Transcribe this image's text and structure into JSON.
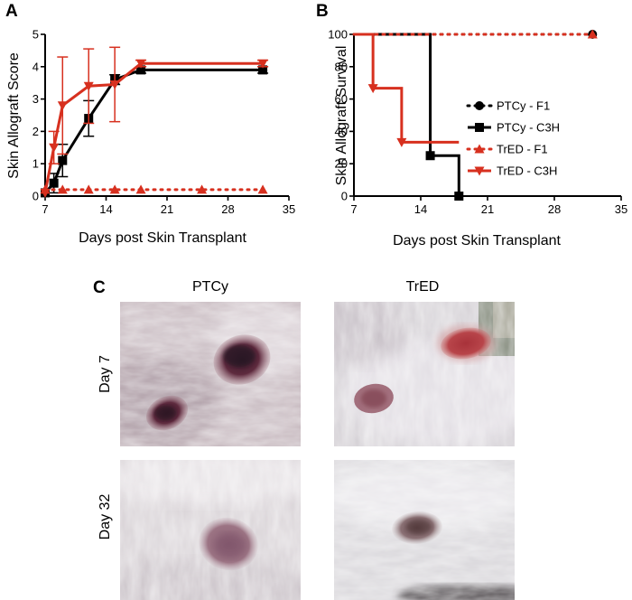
{
  "figure": {
    "panel_labels": [
      "A",
      "B",
      "C"
    ]
  },
  "chart_data": [
    {
      "panel": "A",
      "type": "line",
      "title": "",
      "xlabel": "Days post Skin Transplant",
      "ylabel": "Skin Allograft Score",
      "xlim": [
        7,
        35
      ],
      "ylim": [
        0,
        5
      ],
      "xticks": [
        7,
        14,
        21,
        28,
        35
      ],
      "yticks": [
        0,
        1,
        2,
        3,
        4,
        5
      ],
      "grid": false,
      "series": [
        {
          "name": "PTCy - C3H",
          "color": "#000000",
          "marker": "square",
          "dashed": false,
          "x": [
            7,
            8,
            9,
            12,
            15,
            18,
            32
          ],
          "y": [
            0.1,
            0.4,
            1.1,
            2.4,
            3.6,
            3.9,
            3.9
          ],
          "err": [
            0,
            0.3,
            0.5,
            0.55,
            0.15,
            0.1,
            0.1
          ]
        },
        {
          "name": "TrED - C3H",
          "color": "#d7301f",
          "marker": "triangle-down",
          "dashed": false,
          "x": [
            7,
            8,
            9,
            12,
            15,
            18,
            32
          ],
          "y": [
            0.1,
            1.5,
            2.8,
            3.4,
            3.45,
            4.1,
            4.1
          ],
          "err": [
            0,
            0.5,
            1.5,
            1.15,
            1.15,
            0.1,
            0.1
          ]
        },
        {
          "name": "TrED - F1",
          "color": "#d7301f",
          "marker": "triangle-up",
          "dashed": true,
          "x": [
            7,
            9,
            12,
            15,
            18,
            25,
            32
          ],
          "y": [
            0.2,
            0.2,
            0.2,
            0.2,
            0.2,
            0.2,
            0.2
          ],
          "err": [
            0,
            0,
            0,
            0,
            0,
            0,
            0
          ]
        }
      ]
    },
    {
      "panel": "B",
      "type": "line",
      "title": "",
      "xlabel": "Days post Skin Transplant",
      "ylabel": "Skin Allograft Survival",
      "xlim": [
        7,
        35
      ],
      "ylim": [
        0,
        100
      ],
      "xticks": [
        7,
        14,
        21,
        28,
        35
      ],
      "yticks": [
        0,
        20,
        40,
        60,
        80,
        100
      ],
      "grid": false,
      "legend_position": "right",
      "series": [
        {
          "name": "PTCy - F1",
          "color": "#000000",
          "marker": "circle",
          "dashed": true,
          "step": true,
          "x": [
            7,
            32
          ],
          "y": [
            100,
            100
          ],
          "marker_x": [
            32
          ],
          "marker_y": [
            100
          ]
        },
        {
          "name": "PTCy - C3H",
          "color": "#000000",
          "marker": "square",
          "dashed": false,
          "step": true,
          "x": [
            7,
            15,
            18
          ],
          "y": [
            100,
            25,
            0
          ],
          "marker_x": [
            15,
            18
          ],
          "marker_y": [
            25,
            0
          ]
        },
        {
          "name": "TrED - F1",
          "color": "#d7301f",
          "marker": "triangle-up",
          "dashed": true,
          "step": true,
          "x": [
            7,
            32
          ],
          "y": [
            100,
            100
          ],
          "marker_x": [
            32
          ],
          "marker_y": [
            100
          ]
        },
        {
          "name": "TrED - C3H",
          "color": "#d7301f",
          "marker": "triangle-down",
          "dashed": false,
          "step": true,
          "x": [
            7,
            9,
            12,
            18
          ],
          "y": [
            100,
            66.7,
            33.3,
            33.3
          ],
          "marker_x": [
            9,
            12
          ],
          "marker_y": [
            66.7,
            33.3
          ]
        }
      ]
    }
  ],
  "photos": {
    "columns": [
      "PTCy",
      "TrED"
    ],
    "rows": [
      "Day 7",
      "Day 32"
    ]
  }
}
